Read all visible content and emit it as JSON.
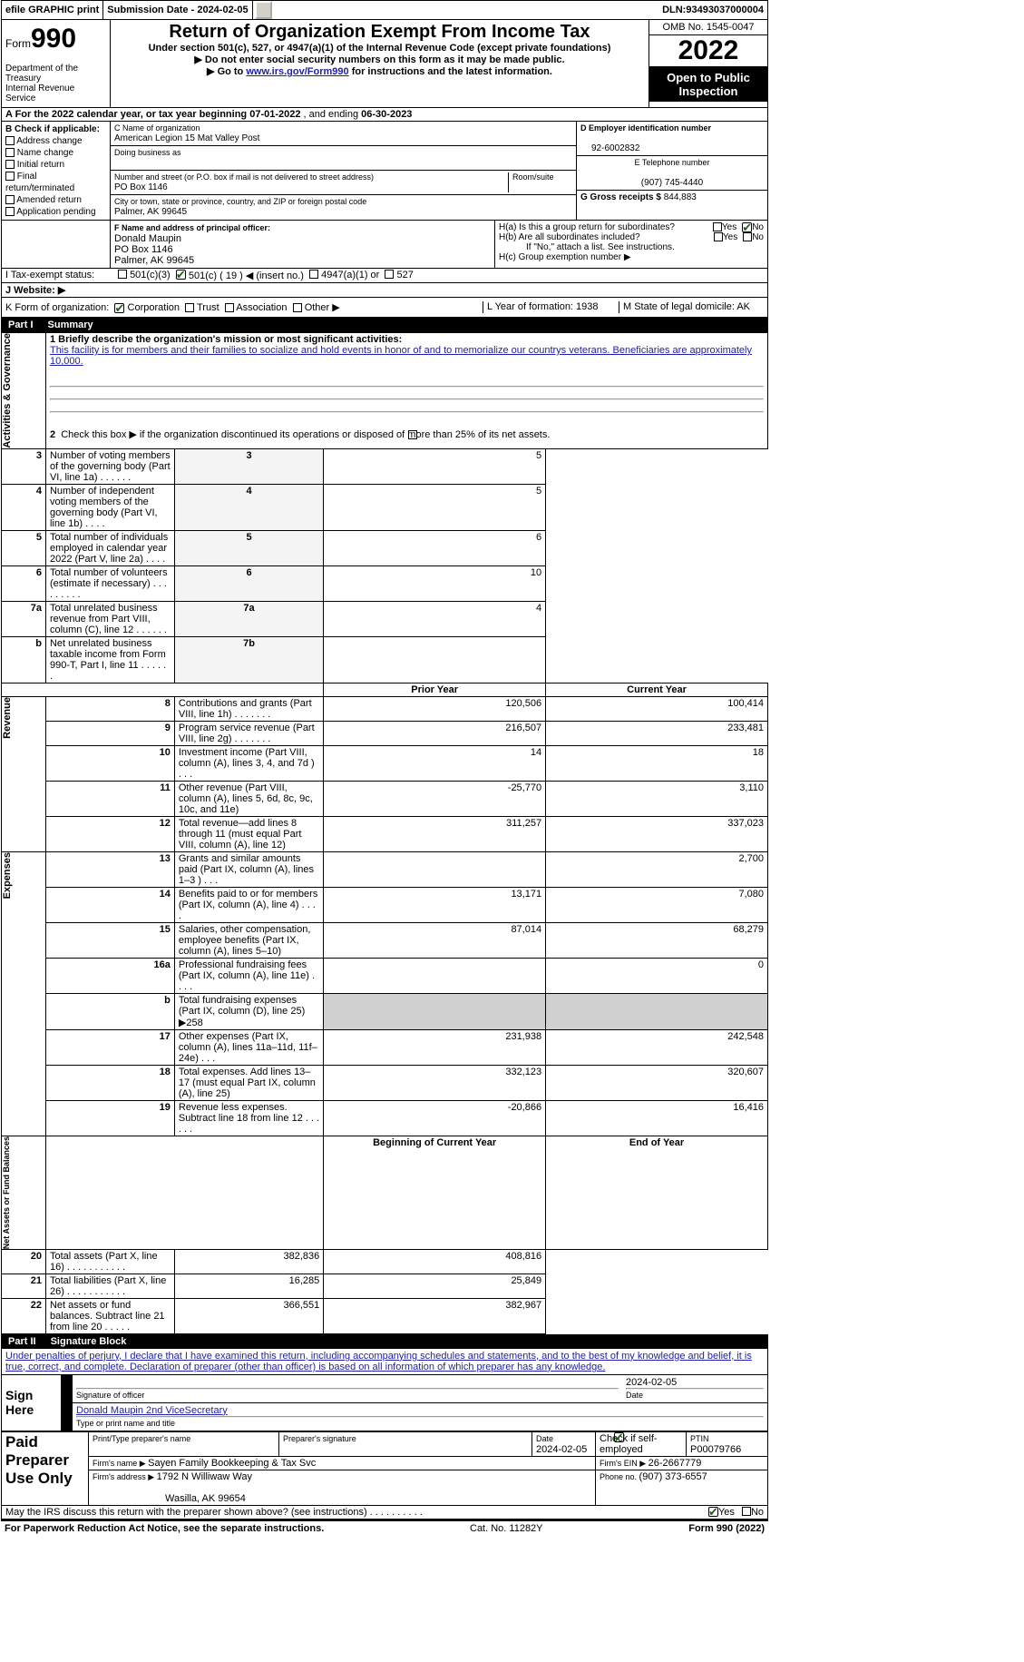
{
  "topbar": {
    "efile": "efile GRAPHIC print",
    "subdate_lbl": "Submission Date - ",
    "subdate": "2024-02-05",
    "dln_lbl": "DLN: ",
    "dln": "93493037000004"
  },
  "header": {
    "form_word": "Form",
    "form_num": "990",
    "dept": "Department of the Treasury\nInternal Revenue Service",
    "title": "Return of Organization Exempt From Income Tax",
    "subtitle": "Under section 501(c), 527, or 4947(a)(1) of the Internal Revenue Code (except private foundations)",
    "ssn_note": "▶ Do not enter social security numbers on this form as it may be made public.",
    "goto_pre": "▶ Go to ",
    "goto_link": "www.irs.gov/Form990",
    "goto_post": " for instructions and the latest information.",
    "omb": "OMB No. 1545-0047",
    "year": "2022",
    "open": "Open to Public Inspection"
  },
  "lineA": {
    "pre": "A For the 2022 calendar year, or tax year beginning ",
    "beg": "07-01-2022",
    "mid": "   , and ending ",
    "end": "06-30-2023"
  },
  "B": {
    "title": "B Check if applicable:",
    "o1": "Address change",
    "o2": "Name change",
    "o3": "Initial return",
    "o4": "Final return/terminated",
    "o5": "Amended return",
    "o6": "Application pending"
  },
  "C": {
    "name_lbl": "C Name of organization",
    "name": "American Legion 15 Mat Valley Post",
    "dba": "Doing business as",
    "addr_lbl": "Number and street (or P.O. box if mail is not delivered to street address)",
    "room": "Room/suite",
    "addr": "PO Box 1146",
    "city_lbl": "City or town, state or province, country, and ZIP or foreign postal code",
    "city": "Palmer, AK  99645"
  },
  "D": {
    "lbl": "D Employer identification number",
    "val": "92-6002832"
  },
  "E": {
    "lbl": "E Telephone number",
    "val": "(907) 745-4440"
  },
  "G": {
    "lbl": "G Gross receipts $ ",
    "val": "844,883"
  },
  "F": {
    "lbl": "F  Name and address of principal officer:",
    "name": "Donald Maupin",
    "addr": "PO Box 1146",
    "city": "Palmer, AK  99645"
  },
  "H": {
    "ha": "H(a)  Is this a group return for subordinates?",
    "hb": "H(b)  Are all subordinates included?",
    "hbnote": "If \"No,\" attach a list. See instructions.",
    "hc": "H(c)  Group exemption number ▶",
    "yes": "Yes",
    "no": "No"
  },
  "I": {
    "lbl": "I   Tax-exempt status:",
    "c1": "501(c)(3)",
    "c2": "501(c) ( 19 ) ◀ (insert no.)",
    "c3": "4947(a)(1) or",
    "c4": "527"
  },
  "J": {
    "lbl": "J   Website: ▶"
  },
  "K": {
    "lbl": "K Form of organization:",
    "o1": "Corporation",
    "o2": "Trust",
    "o3": "Association",
    "o4": "Other ▶"
  },
  "L": {
    "lbl": "L Year of formation: ",
    "val": "1938"
  },
  "M": {
    "lbl": "M State of legal domicile: ",
    "val": "AK"
  },
  "parts": {
    "p1": "Part I",
    "p1t": "Summary",
    "p2": "Part II",
    "p2t": "Signature Block"
  },
  "line1": {
    "lbl": "1  Briefly describe the organization's mission or most significant activities:",
    "txt": "This facility is for members and their families to socialize and hold events in honor of and to memorialize our countrys veterans. Beneficiaries are approximately 10,000."
  },
  "line2": "Check this box ▶        if the organization discontinued its operations or disposed of more than 25% of its net assets.",
  "sidetabs": {
    "ag": "Activities & Governance",
    "rev": "Revenue",
    "exp": "Expenses",
    "net": "Net Assets or Fund Balances"
  },
  "cols": {
    "prior": "Prior Year",
    "curr": "Current Year",
    "beg": "Beginning of Current Year",
    "end": "End of Year"
  },
  "lines": [
    {
      "n": "3",
      "t": "Number of voting members of the governing body (Part VI, line 1a)   .    .    .    .    .    .",
      "b": "3",
      "cur": "5",
      "single": true
    },
    {
      "n": "4",
      "t": "Number of independent voting members of the governing body (Part VI, line 1b)   .    .    .    .",
      "b": "4",
      "cur": "5",
      "single": true
    },
    {
      "n": "5",
      "t": "Total number of individuals employed in calendar year 2022 (Part V, line 2a)   .    .    .    .",
      "b": "5",
      "cur": "6",
      "single": true
    },
    {
      "n": "6",
      "t": "Total number of volunteers (estimate if necessary)    .    .    .    .    .    .    .    .    .",
      "b": "6",
      "cur": "10",
      "single": true
    },
    {
      "n": "7a",
      "t": "Total unrelated business revenue from Part VIII, column (C), line 12    .    .    .    .    .    .",
      "b": "7a",
      "cur": "4",
      "single": true
    },
    {
      "n": "b",
      "t": "Net unrelated business taxable income from Form 990-T, Part I, line 11   .    .    .    .    .    .",
      "b": "7b",
      "cur": "",
      "single": true
    }
  ],
  "rev": [
    {
      "n": "8",
      "t": "Contributions and grants (Part VIII, line 1h)    .    .    .    .    .    .    .",
      "p": "120,506",
      "c": "100,414"
    },
    {
      "n": "9",
      "t": "Program service revenue (Part VIII, line 2g)    .    .    .    .    .    .    .",
      "p": "216,507",
      "c": "233,481"
    },
    {
      "n": "10",
      "t": "Investment income (Part VIII, column (A), lines 3, 4, and 7d )    .    .    .",
      "p": "14",
      "c": "18"
    },
    {
      "n": "11",
      "t": "Other revenue (Part VIII, column (A), lines 5, 6d, 8c, 9c, 10c, and 11e)",
      "p": "-25,770",
      "c": "3,110"
    },
    {
      "n": "12",
      "t": "Total revenue—add lines 8 through 11 (must equal Part VIII, column (A), line 12)",
      "p": "311,257",
      "c": "337,023"
    }
  ],
  "exp": [
    {
      "n": "13",
      "t": "Grants and similar amounts paid (Part IX, column (A), lines 1–3 )   .    .    .",
      "p": "",
      "c": "2,700"
    },
    {
      "n": "14",
      "t": "Benefits paid to or for members (Part IX, column (A), line 4)   .    .    .    .",
      "p": "13,171",
      "c": "7,080"
    },
    {
      "n": "15",
      "t": "Salaries, other compensation, employee benefits (Part IX, column (A), lines 5–10)",
      "p": "87,014",
      "c": "68,279"
    },
    {
      "n": "16a",
      "t": "Professional fundraising fees (Part IX, column (A), line 11e)    .    .    .    .",
      "p": "",
      "c": "0"
    },
    {
      "n": "b",
      "t": "Total fundraising expenses (Part IX, column (D), line 25) ▶258",
      "p": "GREY",
      "c": "GREY"
    },
    {
      "n": "17",
      "t": "Other expenses (Part IX, column (A), lines 11a–11d, 11f–24e)   .    .    .",
      "p": "231,938",
      "c": "242,548"
    },
    {
      "n": "18",
      "t": "Total expenses. Add lines 13–17 (must equal Part IX, column (A), line 25)",
      "p": "332,123",
      "c": "320,607"
    },
    {
      "n": "19",
      "t": "Revenue less expenses. Subtract line 18 from line 12   .    .    .    .    .    .",
      "p": "-20,866",
      "c": "16,416"
    }
  ],
  "net": [
    {
      "n": "20",
      "t": "Total assets (Part X, line 16)   .    .    .    .    .    .    .    .    .    .    .",
      "p": "382,836",
      "c": "408,816"
    },
    {
      "n": "21",
      "t": "Total liabilities (Part X, line 26)   .    .    .    .    .    .    .    .    .    .    .",
      "p": "16,285",
      "c": "25,849"
    },
    {
      "n": "22",
      "t": "Net assets or fund balances. Subtract line 21 from line 20   .    .    .    .    .",
      "p": "366,551",
      "c": "382,967"
    }
  ],
  "sig": {
    "decl": "Under penalties of perjury, I declare that I have examined this return, including accompanying schedules and statements, and to the best of my knowledge and belief, it is true, correct, and complete. Declaration of preparer (other than officer) is based on all information of which preparer has any knowledge.",
    "signhere": "Sign Here",
    "sigoff": "Signature of officer",
    "date": "Date",
    "datev": "2024-02-05",
    "name": "Donald Maupin  2nd ViceSecretary",
    "typelbl": "Type or print name and title",
    "paid": "Paid Preparer Use Only",
    "pname": "Print/Type preparer's name",
    "psig": "Preparer's signature",
    "pdate": "2024-02-05",
    "chk": "Check        if self-employed",
    "ptin": "PTIN",
    "ptinv": "P00079766",
    "firm": "Firm's name    ▶ ",
    "firmv": "Sayen Family Bookkeeping & Tax Svc",
    "ein": "Firm's EIN ▶ ",
    "einv": "26-2667779",
    "faddr": "Firm's address ▶ ",
    "faddrv": "1792 N Williwaw Way",
    "faddr2": "Wasilla, AK  99654",
    "phone": "Phone no. ",
    "phonev": "(907) 373-6557",
    "may": "May the IRS discuss this return with the preparer shown above? (see instructions)   .    .    .    .    .    .    .    .    .    ."
  },
  "footer": {
    "pra": "For Paperwork Reduction Act Notice, see the separate instructions.",
    "cat": "Cat. No. 11282Y",
    "form": "Form 990 (2022)"
  },
  "colors": {
    "black": "#000000",
    "navy": "#2020b0",
    "green": "#1a5f1a",
    "btn": "#d4d0c8"
  }
}
